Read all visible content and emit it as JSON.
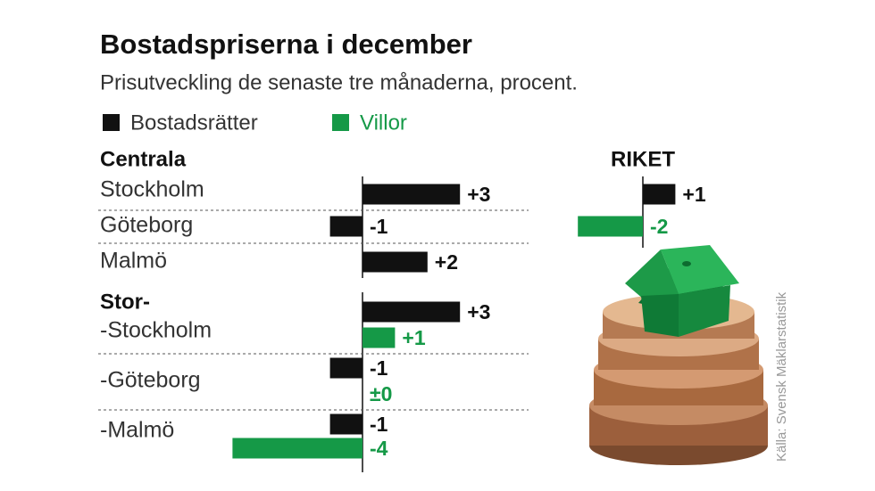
{
  "chart_data": [
    {
      "type": "bar",
      "title": "Bostadspriserna i december",
      "subtitle": "Prisutveckling de senaste tre månaderna, procent.",
      "groups": [
        "Centrala",
        "Stor-"
      ],
      "categories": [
        "Stockholm",
        "Göteborg",
        "Malmö",
        "-Stockholm",
        "-Göteborg",
        "-Malmö"
      ],
      "series": [
        {
          "name": "Bostadsrätter",
          "color": "#111111",
          "values": [
            3,
            -1,
            2,
            3,
            -1,
            -1
          ],
          "value_labels": [
            "+3",
            "-1",
            "+2",
            "+3",
            "-1",
            "-1"
          ]
        },
        {
          "name": "Villor",
          "color": "#159947",
          "values": [
            null,
            null,
            null,
            1,
            0,
            -4
          ],
          "value_labels": [
            null,
            null,
            null,
            "+1",
            "±0",
            "-4"
          ]
        }
      ],
      "xlim": [
        -4,
        3
      ],
      "source": "Källa: Svensk Mäklarstatistik"
    },
    {
      "type": "bar",
      "title": "RIKET",
      "series": [
        {
          "color": "#111111",
          "values": [
            1
          ],
          "value_labels": [
            "+1"
          ]
        },
        {
          "color": "#159947",
          "values": [
            -2
          ],
          "value_labels": [
            "-2"
          ]
        }
      ],
      "xlim": [
        -2,
        1
      ]
    }
  ]
}
